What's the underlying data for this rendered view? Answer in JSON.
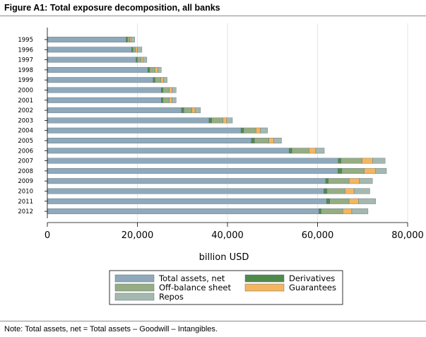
{
  "figure": {
    "title": "Figure A1: Total exposure decomposition, all banks",
    "note": "Note: Total assets, net = Total assets – Goodwill – Intangibles."
  },
  "chart_data": {
    "type": "bar",
    "orientation": "horizontal",
    "stacked": true,
    "categories": [
      "1995",
      "1996",
      "1997",
      "1998",
      "1999",
      "2000",
      "2001",
      "2002",
      "2003",
      "2004",
      "2005",
      "2006",
      "2007",
      "2008",
      "2009",
      "2010",
      "2011",
      "2012"
    ],
    "series": [
      {
        "name": "Total assets, net",
        "color": "#8fa9bb",
        "values": [
          17500,
          18700,
          19700,
          22300,
          23500,
          25300,
          25300,
          29800,
          35900,
          43000,
          45300,
          53700,
          64600,
          64500,
          61800,
          61400,
          62000,
          60300
        ]
      },
      {
        "name": "Derivatives",
        "color": "#4f8a4a",
        "values": [
          300,
          300,
          300,
          400,
          400,
          400,
          400,
          500,
          600,
          600,
          700,
          600,
          600,
          900,
          600,
          700,
          700,
          500
        ]
      },
      {
        "name": "Off-balance sheet",
        "color": "#96ad83",
        "values": [
          500,
          600,
          800,
          1200,
          1300,
          1400,
          1400,
          1800,
          2500,
          2700,
          3200,
          3800,
          4700,
          5000,
          4600,
          4000,
          4300,
          4800
        ]
      },
      {
        "name": "Guarantees",
        "color": "#f5b55e",
        "values": [
          300,
          400,
          400,
          600,
          600,
          600,
          600,
          700,
          800,
          1000,
          1100,
          1500,
          2300,
          2500,
          2300,
          2000,
          2100,
          2000
        ]
      },
      {
        "name": "Repos",
        "color": "#a4b8b0",
        "values": [
          800,
          1000,
          900,
          800,
          800,
          900,
          900,
          1200,
          1300,
          1600,
          1700,
          1900,
          2800,
          2400,
          2900,
          3500,
          3800,
          3600
        ]
      }
    ],
    "xlabel": "billion USD",
    "ylabel": "",
    "xlim": [
      0,
      80000
    ],
    "xticks": [
      0,
      20000,
      40000,
      60000,
      80000
    ],
    "xtick_labels": [
      "0",
      "20,000",
      "40,000",
      "60,000",
      "80,000"
    ],
    "grid": true,
    "legend": {
      "position": "bottom",
      "entries": [
        "Total assets, net",
        "Derivatives",
        "Off-balance sheet",
        "Guarantees",
        "Repos"
      ]
    }
  }
}
